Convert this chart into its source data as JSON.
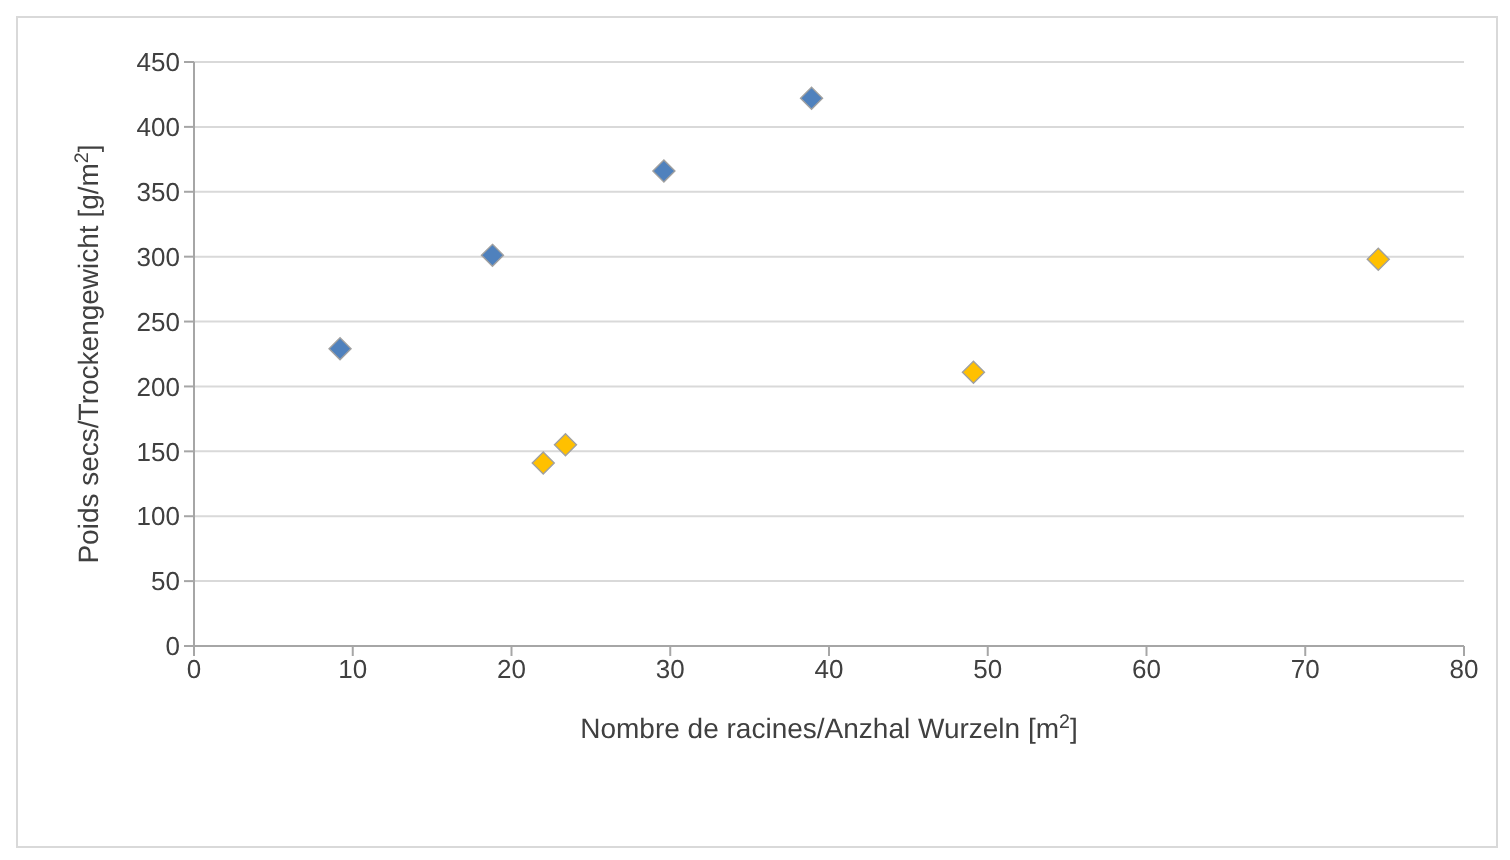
{
  "chart_data": {
    "type": "scatter",
    "xlabel": "Nombre de racines/Anzhal Wurzeln [m$^{2}$]",
    "ylabel": "Poids secs/Trockengewicht [g/m$^{2}$]",
    "series": [
      {
        "color": "#4f81bd",
        "x": [
          9.2,
          18.8,
          29.6,
          38.9
        ],
        "values": [
          229,
          301,
          366,
          422
        ]
      },
      {
        "color": "#ffc000",
        "x": [
          22.0,
          23.4,
          49.1,
          74.6
        ],
        "values": [
          141,
          155,
          211,
          298
        ]
      }
    ],
    "xlim": [
      0,
      80
    ],
    "xticks": [
      0,
      10,
      20,
      30,
      40,
      50,
      60,
      70,
      80
    ],
    "ylim": [
      0,
      450
    ],
    "yticks": [
      0,
      50,
      100,
      150,
      200,
      250,
      300,
      350,
      400,
      450
    ],
    "grid": "y",
    "marker": "diamond",
    "legend": false
  }
}
